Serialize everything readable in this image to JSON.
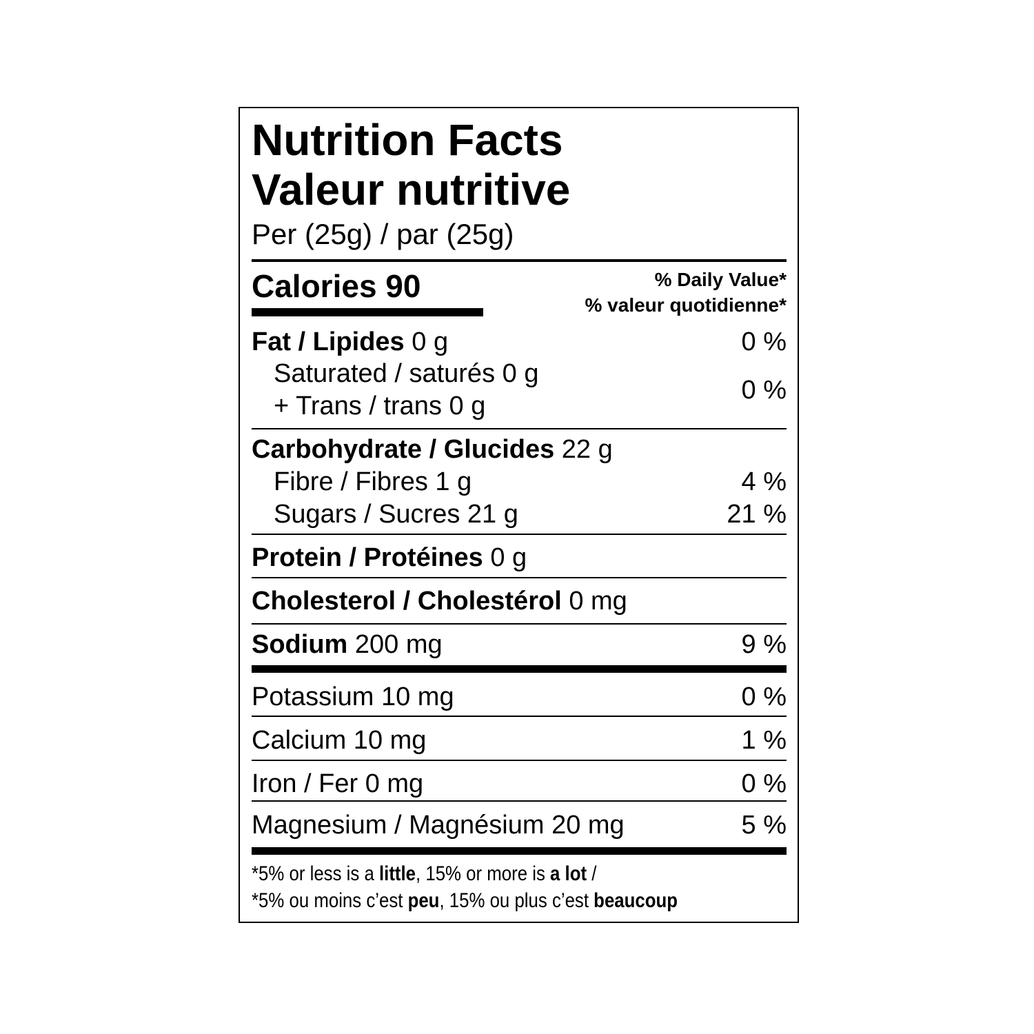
{
  "title_en": "Nutrition Facts",
  "title_fr": "Valeur nutritive",
  "serving": "Per (25g) / par (25g)",
  "calories_label": "Calories 90",
  "dv_en": "% Daily Value*",
  "dv_fr": "% valeur quotidienne*",
  "rows": {
    "fat": {
      "label": "Fat / Lipides",
      "amount": "0 g",
      "dv": "0 %"
    },
    "saturated": {
      "label": "Saturated / saturés 0 g"
    },
    "trans": {
      "label": "+ Trans / trans 0 g",
      "dv": "0 %"
    },
    "carb": {
      "label": "Carbohydrate / Glucides",
      "amount": "22 g"
    },
    "fibre": {
      "label": "Fibre / Fibres 1 g",
      "dv": "4 %"
    },
    "sugars": {
      "label": "Sugars / Sucres 21 g",
      "dv": "21 %"
    },
    "protein": {
      "label": "Protein / Protéines",
      "amount": "0 g"
    },
    "cholesterol": {
      "label": "Cholesterol / Cholestérol",
      "amount": "0 mg"
    },
    "sodium": {
      "label": "Sodium",
      "amount": "200 mg",
      "dv": "9 %"
    },
    "potassium": {
      "label": "Potassium 10 mg",
      "dv": "0 %"
    },
    "calcium": {
      "label": "Calcium 10 mg",
      "dv": "1 %"
    },
    "iron": {
      "label": "Iron / Fer 0 mg",
      "dv": "0 %"
    },
    "magnesium": {
      "label": "Magnesium / Magnésium 20 mg",
      "dv": "5 %"
    }
  },
  "footnote": {
    "en": {
      "a": "*5% or less is a ",
      "b": "little",
      "c": ", 15% or more is ",
      "d": "a lot",
      "e": " /"
    },
    "fr": {
      "a": "*5% ou moins c’est ",
      "b": "peu",
      "c": ", 15% ou plus c’est ",
      "d": "beaucoup"
    }
  }
}
